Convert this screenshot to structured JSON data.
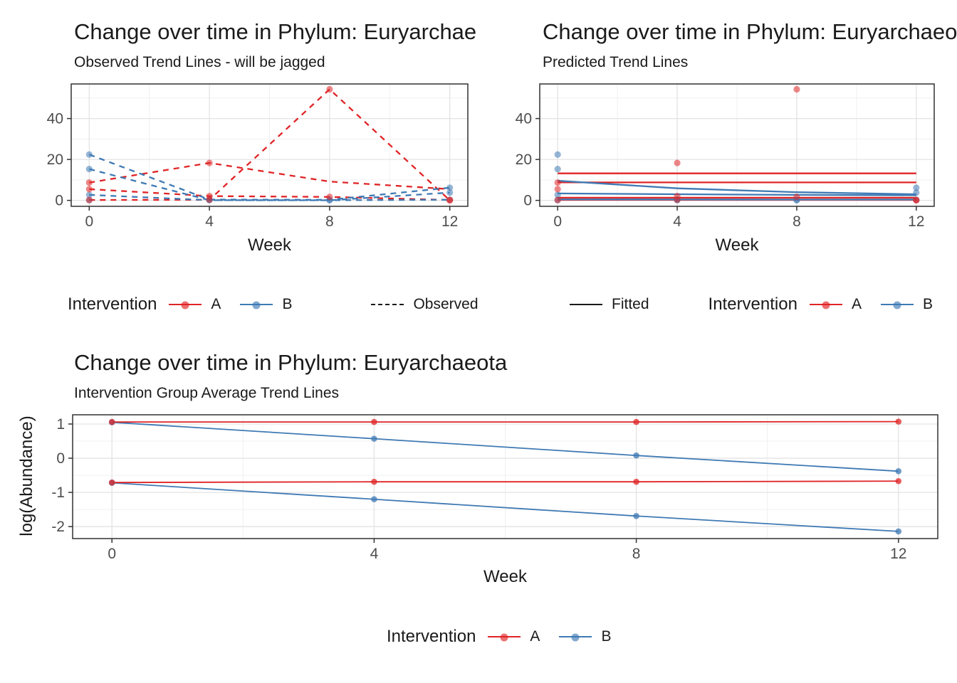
{
  "colors": {
    "intervention_a": "#E02426",
    "intervention_b": "#3F7AB4",
    "axis_text": "#4D4D4D",
    "title_text": "#1a1a1a",
    "grid_major": "#E3E3E3",
    "grid_minor": "#F0F0F0",
    "panel_border": "#303030",
    "tick_mark": "#333333",
    "neutral_key": "#1a1a1a"
  },
  "chart_data": [
    {
      "id": "observed",
      "type": "line",
      "title": "Change over time in Phylum: Euryarchaeota",
      "subtitle": "Observed Trend Lines - will be jagged",
      "xlabel": "Week",
      "x_ticks": [
        0,
        4,
        8,
        12
      ],
      "x_minor": [
        2,
        6,
        10
      ],
      "y_ticks": [
        0,
        20,
        40
      ],
      "y_minor": [
        10,
        30,
        50
      ],
      "xlim": [
        -0.6,
        12.6
      ],
      "ylim": [
        -2.9,
        56.9
      ],
      "line_style": "dashed",
      "lines": [
        {
          "group": "A",
          "x": [
            0,
            4,
            8,
            12
          ],
          "y": [
            8.7,
            18.3,
            9.2,
            5.5
          ]
        },
        {
          "group": "A",
          "x": [
            0,
            4,
            8,
            12
          ],
          "y": [
            5.5,
            2.1,
            1.7,
            0.2
          ]
        },
        {
          "group": "A",
          "x": [
            0,
            4,
            8,
            12
          ],
          "y": [
            0.2,
            0.3,
            54.3,
            0.05
          ]
        },
        {
          "group": "B",
          "x": [
            0,
            4,
            8,
            12
          ],
          "y": [
            22.4,
            0.4,
            0.3,
            6.2
          ]
        },
        {
          "group": "B",
          "x": [
            0,
            4,
            8,
            12
          ],
          "y": [
            15.3,
            0.1,
            0.05,
            3.8
          ]
        },
        {
          "group": "B",
          "x": [
            0,
            4,
            8,
            12
          ],
          "y": [
            2.7,
            0.1,
            0.1,
            0.3
          ]
        }
      ],
      "points": [
        {
          "group": "B",
          "pts": [
            [
              0,
              22.4
            ],
            [
              0,
              15.3
            ],
            [
              0,
              2.7
            ],
            [
              0,
              0.1
            ],
            [
              4,
              0.4
            ],
            [
              4,
              0.1
            ],
            [
              8,
              0.3
            ],
            [
              8,
              0.05
            ],
            [
              12,
              6.2
            ],
            [
              12,
              3.8
            ],
            [
              12,
              0.3
            ]
          ]
        },
        {
          "group": "A",
          "pts": [
            [
              0,
              8.7
            ],
            [
              0,
              5.5
            ],
            [
              0,
              0.2
            ],
            [
              4,
              18.3
            ],
            [
              4,
              2.1
            ],
            [
              4,
              0.3
            ],
            [
              8,
              54.3
            ],
            [
              8,
              1.7
            ],
            [
              12,
              0.2
            ],
            [
              12,
              0.05
            ]
          ]
        }
      ]
    },
    {
      "id": "predicted",
      "type": "line",
      "title": "Change over time in Phylum: Euryarchaeota",
      "subtitle": "Predicted Trend Lines",
      "xlabel": "Week",
      "x_ticks": [
        0,
        4,
        8,
        12
      ],
      "x_minor": [
        2,
        6,
        10
      ],
      "y_ticks": [
        0,
        20,
        40
      ],
      "y_minor": [
        10,
        30,
        50
      ],
      "xlim": [
        -0.6,
        12.6
      ],
      "ylim": [
        -2.9,
        56.9
      ],
      "line_style": "solid",
      "lines": [
        {
          "group": "A",
          "x": [
            0,
            4,
            8,
            12
          ],
          "y": [
            13.2,
            13.2,
            13.2,
            13.2
          ]
        },
        {
          "group": "A",
          "x": [
            0,
            4,
            8,
            12
          ],
          "y": [
            8.8,
            8.8,
            8.8,
            8.8
          ]
        },
        {
          "group": "A",
          "x": [
            0,
            4,
            8,
            12
          ],
          "y": [
            1.3,
            1.3,
            1.3,
            1.3
          ]
        },
        {
          "group": "A",
          "x": [
            0,
            4,
            8,
            12
          ],
          "y": [
            0.25,
            0.25,
            0.25,
            0.25
          ]
        },
        {
          "group": "B",
          "x": [
            0,
            4,
            8,
            12
          ],
          "y": [
            9.6,
            5.9,
            4.0,
            3.0
          ]
        },
        {
          "group": "B",
          "x": [
            0,
            4,
            8,
            12
          ],
          "y": [
            3.4,
            3.0,
            2.7,
            2.5
          ]
        },
        {
          "group": "B",
          "x": [
            0,
            4,
            8,
            12
          ],
          "y": [
            0.5,
            0.45,
            0.4,
            0.4
          ]
        }
      ],
      "points": [
        {
          "group": "B",
          "pts": [
            [
              0,
              22.4
            ],
            [
              0,
              15.3
            ],
            [
              0,
              2.7
            ],
            [
              0,
              0.1
            ],
            [
              4,
              0.4
            ],
            [
              4,
              0.1
            ],
            [
              8,
              0.3
            ],
            [
              8,
              0.05
            ],
            [
              12,
              6.2
            ],
            [
              12,
              3.8
            ],
            [
              12,
              0.3
            ]
          ]
        },
        {
          "group": "A",
          "pts": [
            [
              0,
              8.7
            ],
            [
              0,
              5.5
            ],
            [
              0,
              0.2
            ],
            [
              4,
              18.3
            ],
            [
              4,
              2.1
            ],
            [
              4,
              0.3
            ],
            [
              8,
              54.3
            ],
            [
              8,
              1.7
            ],
            [
              12,
              0.2
            ],
            [
              12,
              0.05
            ]
          ]
        }
      ]
    },
    {
      "id": "average",
      "type": "line",
      "title": "Change over time in Phylum: Euryarchaeota",
      "subtitle": "Intervention Group Average Trend Lines",
      "xlabel": "Week",
      "ylabel": "log(Abundance)",
      "x_ticks": [
        0,
        4,
        8,
        12
      ],
      "x_minor": [
        2,
        6,
        10
      ],
      "y_ticks": [
        1,
        0,
        -1,
        -2
      ],
      "y_minor": [
        0.5,
        -0.5,
        -1.5
      ],
      "xlim": [
        -0.6,
        12.6
      ],
      "ylim": [
        -2.35,
        1.27
      ],
      "line_style": "solid",
      "lines": [
        {
          "group": "B",
          "x": [
            0,
            4,
            8,
            12
          ],
          "y": [
            1.05,
            0.57,
            0.08,
            -0.38
          ]
        },
        {
          "group": "B",
          "x": [
            0,
            4,
            8,
            12
          ],
          "y": [
            -0.72,
            -1.2,
            -1.69,
            -2.14
          ]
        },
        {
          "group": "A",
          "x": [
            0,
            4,
            8,
            12
          ],
          "y": [
            1.06,
            1.06,
            1.06,
            1.07
          ]
        },
        {
          "group": "A",
          "x": [
            0,
            4,
            8,
            12
          ],
          "y": [
            -0.71,
            -0.69,
            -0.69,
            -0.67
          ]
        }
      ],
      "points": [
        {
          "group": "B",
          "pts": [
            [
              0,
              1.05
            ],
            [
              4,
              0.57
            ],
            [
              8,
              0.08
            ],
            [
              12,
              -0.38
            ],
            [
              0,
              -0.72
            ],
            [
              4,
              -1.2
            ],
            [
              8,
              -1.69
            ],
            [
              12,
              -2.14
            ]
          ]
        },
        {
          "group": "A",
          "pts": [
            [
              0,
              1.06
            ],
            [
              4,
              1.06
            ],
            [
              8,
              1.06
            ],
            [
              12,
              1.07
            ],
            [
              0,
              -0.71
            ],
            [
              4,
              -0.69
            ],
            [
              8,
              -0.69
            ],
            [
              12,
              -0.67
            ]
          ]
        }
      ]
    }
  ],
  "legends": {
    "observed": {
      "title": "Intervention",
      "items": [
        {
          "label": "A"
        },
        {
          "label": "B"
        }
      ],
      "linetype_label": "Observed"
    },
    "predicted": {
      "fitted_label": "Fitted",
      "title": "Intervention",
      "items": [
        {
          "label": "A"
        },
        {
          "label": "B"
        }
      ]
    },
    "average": {
      "title": "Intervention",
      "items": [
        {
          "label": "A"
        },
        {
          "label": "B"
        }
      ]
    }
  }
}
